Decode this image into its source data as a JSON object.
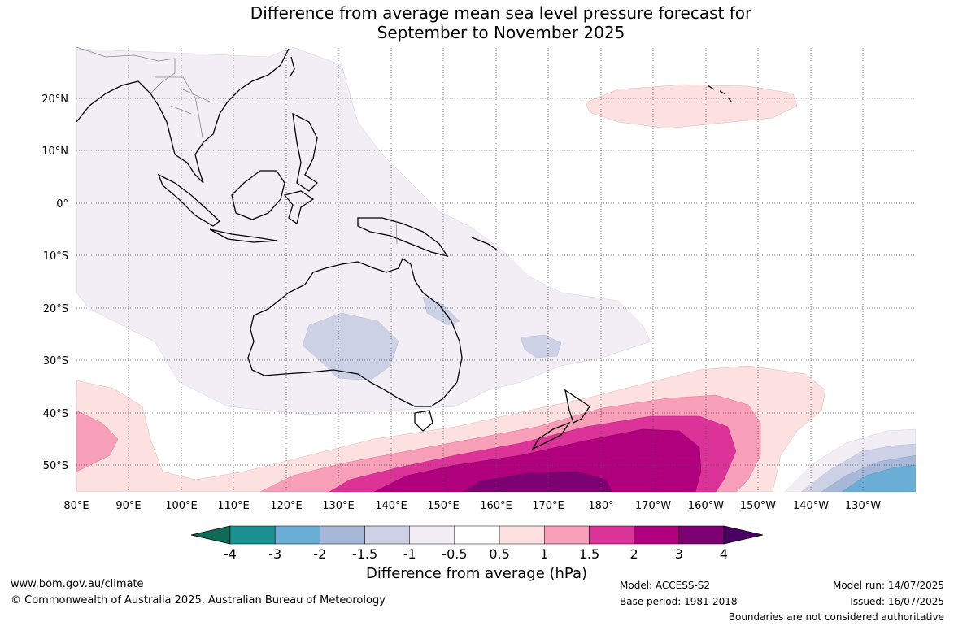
{
  "title_line1": "Difference from average mean sea level pressure forecast for",
  "title_line2": "September to November 2025",
  "lat_labels": [
    "20°N",
    "10°N",
    "0°",
    "10°S",
    "20°S",
    "30°S",
    "40°S",
    "50°S"
  ],
  "lon_labels": [
    "80°E",
    "90°E",
    "100°E",
    "110°E",
    "120°E",
    "130°E",
    "140°E",
    "150°E",
    "160°E",
    "170°E",
    "180°",
    "170°W",
    "160°W",
    "150°W",
    "140°W",
    "130°W"
  ],
  "colorbar": {
    "title": "Difference from average (hPa)",
    "tick_labels": [
      "-4",
      "-3",
      "-2",
      "-1.5",
      "-1",
      "-0.5",
      "0.5",
      "1",
      "1.5",
      "2",
      "3",
      "4"
    ],
    "colors": [
      "#0f6b57",
      "#1a9191",
      "#6aaed5",
      "#a6b7d8",
      "#cdd1e6",
      "#f3eef6",
      "#ffffff",
      "#fde0e0",
      "#f79eb8",
      "#dc3398",
      "#b0007e",
      "#7d0172",
      "#4a0060"
    ]
  },
  "footer": {
    "url": "www.bom.gov.au/climate",
    "copyright": "© Commonwealth of Australia 2025, Australian Bureau of Meteorology",
    "model": "Model: ACCESS-S2",
    "base_period": "Base period: 1981-2018",
    "model_run": "Model run: 14/07/2025",
    "issued": "Issued: 16/07/2025",
    "disclaimer": "Boundaries are not considered authoritative"
  }
}
